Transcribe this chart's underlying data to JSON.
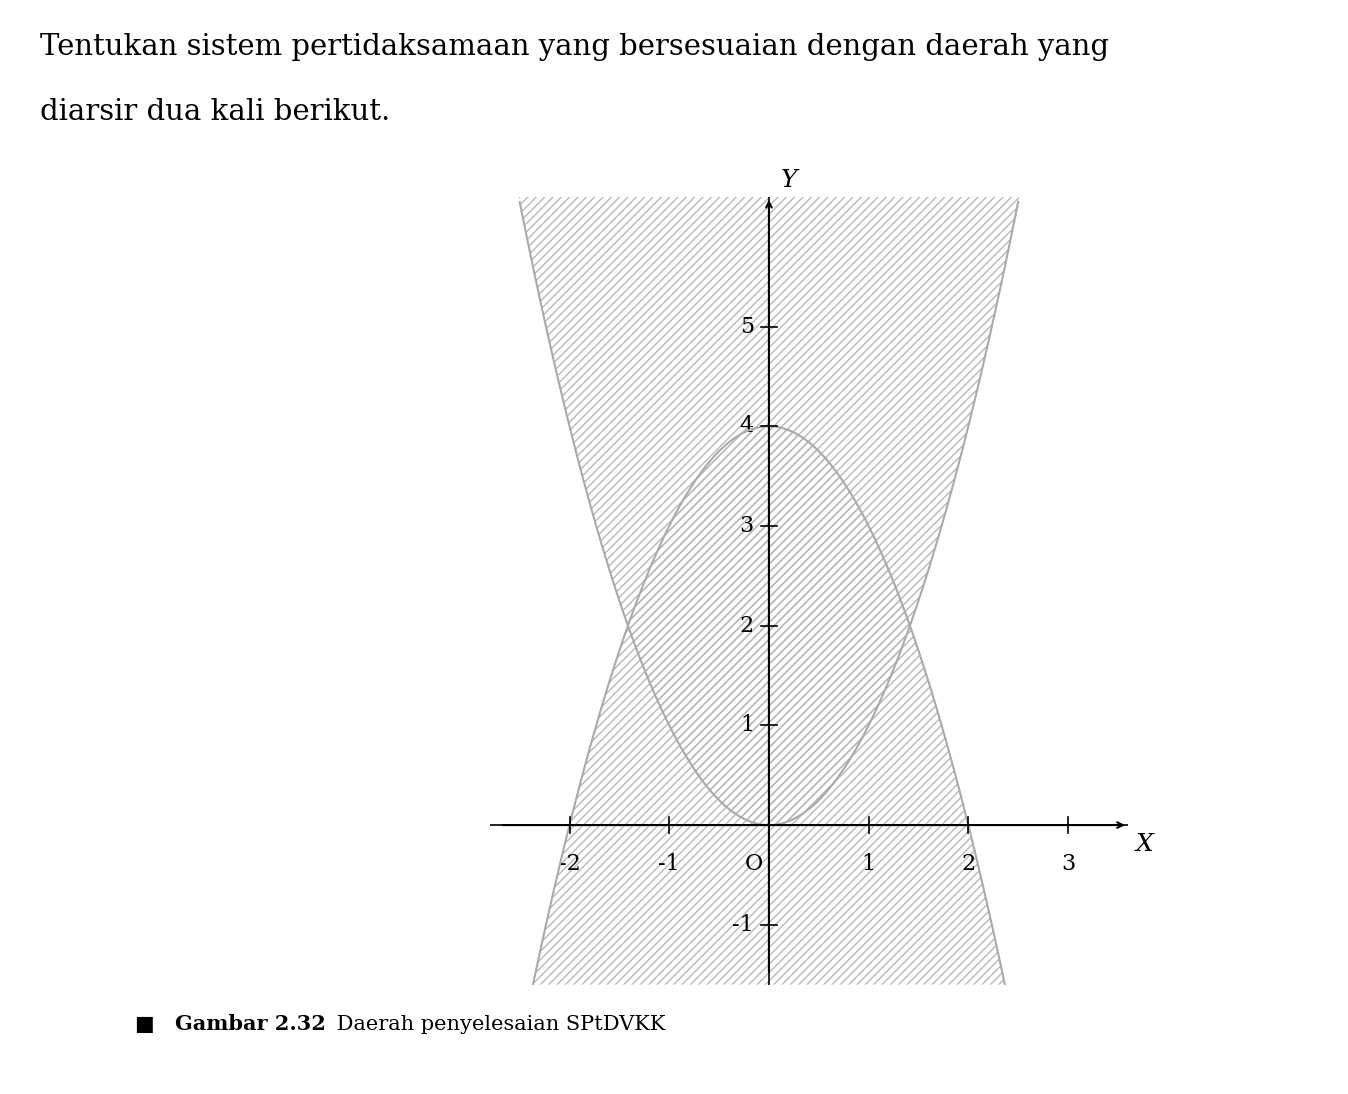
{
  "title_line1": "Tentukan sistem pertidaksamaan yang bersesuaian dengan daerah yang",
  "title_line2": "diarsir dua kali berikut.",
  "caption_bold": "Gambar 2.32",
  "caption_normal": " Daerah penyelesaian SPtDVKK",
  "xlabel": "X",
  "ylabel": "Y",
  "xlim": [
    -2.8,
    3.6
  ],
  "ylim": [
    -1.6,
    6.3
  ],
  "xticks": [
    -2,
    -1,
    1,
    2,
    3
  ],
  "yticks": [
    -1,
    1,
    2,
    3,
    4,
    5
  ],
  "background_color": "#ffffff",
  "hatch_color": "#aaaaaa",
  "curve_color": "#aaaaaa",
  "axis_color": "#000000",
  "tick_fontsize": 16,
  "label_fontsize": 18,
  "title_fontsize": 21,
  "caption_fontsize": 15
}
